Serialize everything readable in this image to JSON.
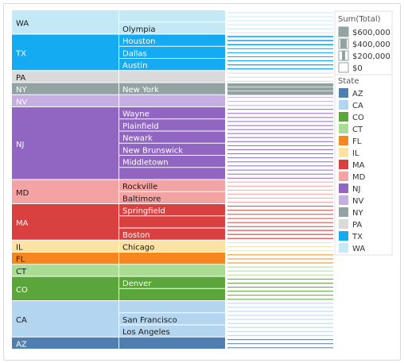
{
  "chart_data": {
    "type": "table",
    "title": "",
    "columns": [
      "State",
      "City",
      "Sum(Total)"
    ],
    "rows": [
      {
        "state": "WA",
        "cities": [
          {
            "name": "",
            "value": 20000
          },
          {
            "name": "Olympia",
            "value": 30000
          }
        ]
      },
      {
        "state": "TX",
        "cities": [
          {
            "name": "Houston",
            "value": 220000
          },
          {
            "name": "Dallas",
            "value": 150000
          },
          {
            "name": "Austin",
            "value": 180000
          }
        ]
      },
      {
        "state": "PA",
        "cities": [
          {
            "name": "",
            "value": 30000
          }
        ]
      },
      {
        "state": "NY",
        "cities": [
          {
            "name": "New York",
            "value": 600000
          }
        ]
      },
      {
        "state": "NV",
        "cities": [
          {
            "name": "",
            "value": 30000
          }
        ]
      },
      {
        "state": "NJ",
        "cities": [
          {
            "name": "Wayne",
            "value": 90000
          },
          {
            "name": "Plainfield",
            "value": 80000
          },
          {
            "name": "Newark",
            "value": 120000
          },
          {
            "name": "New Brunswick",
            "value": 100000
          },
          {
            "name": "Middletown",
            "value": 90000
          },
          {
            "name": "",
            "value": 40000
          }
        ]
      },
      {
        "state": "MD",
        "cities": [
          {
            "name": "Rockville",
            "value": 90000
          },
          {
            "name": "Baltimore",
            "value": 120000
          }
        ]
      },
      {
        "state": "MA",
        "cities": [
          {
            "name": "Springfield",
            "value": 110000
          },
          {
            "name": "",
            "value": 50000
          },
          {
            "name": "Boston",
            "value": 160000
          }
        ]
      },
      {
        "state": "IL",
        "cities": [
          {
            "name": "Chicago",
            "value": 60000
          }
        ]
      },
      {
        "state": "FL",
        "cities": [
          {
            "name": "",
            "value": 40000
          }
        ]
      },
      {
        "state": "CT",
        "cities": [
          {
            "name": "",
            "value": 20000
          }
        ]
      },
      {
        "state": "CO",
        "cities": [
          {
            "name": "Denver",
            "value": 50000
          },
          {
            "name": "",
            "value": 30000
          }
        ]
      },
      {
        "state": "CA",
        "cities": [
          {
            "name": "",
            "value": 40000
          },
          {
            "name": "San Francisco",
            "value": 80000
          },
          {
            "name": "Los Angeles",
            "value": 90000
          }
        ]
      },
      {
        "state": "AZ",
        "cities": [
          {
            "name": "",
            "value": 40000
          }
        ]
      }
    ],
    "size_legend": {
      "title": "Sum(Total)",
      "items": [
        {
          "label": "$600,000",
          "value": 600000
        },
        {
          "label": "$400,000",
          "value": 400000
        },
        {
          "label": "$200,000",
          "value": 200000
        },
        {
          "label": "$0",
          "value": 0
        }
      ]
    },
    "color_legend": {
      "title": "State",
      "items": [
        {
          "label": "AZ",
          "color": "#4e7fb0"
        },
        {
          "label": "CA",
          "color": "#b4d5ef"
        },
        {
          "label": "CO",
          "color": "#5aa63a"
        },
        {
          "label": "CT",
          "color": "#a9dd93"
        },
        {
          "label": "FL",
          "color": "#f6871e"
        },
        {
          "label": "IL",
          "color": "#fce3a3"
        },
        {
          "label": "MA",
          "color": "#d94141"
        },
        {
          "label": "MD",
          "color": "#f4a3a3"
        },
        {
          "label": "NJ",
          "color": "#9166c2"
        },
        {
          "label": "NV",
          "color": "#c5aee1"
        },
        {
          "label": "NY",
          "color": "#93a3a3"
        },
        {
          "label": "PA",
          "color": "#dadada"
        },
        {
          "label": "TX",
          "color": "#15abf2"
        },
        {
          "label": "WA",
          "color": "#c3e9f7"
        }
      ]
    }
  }
}
